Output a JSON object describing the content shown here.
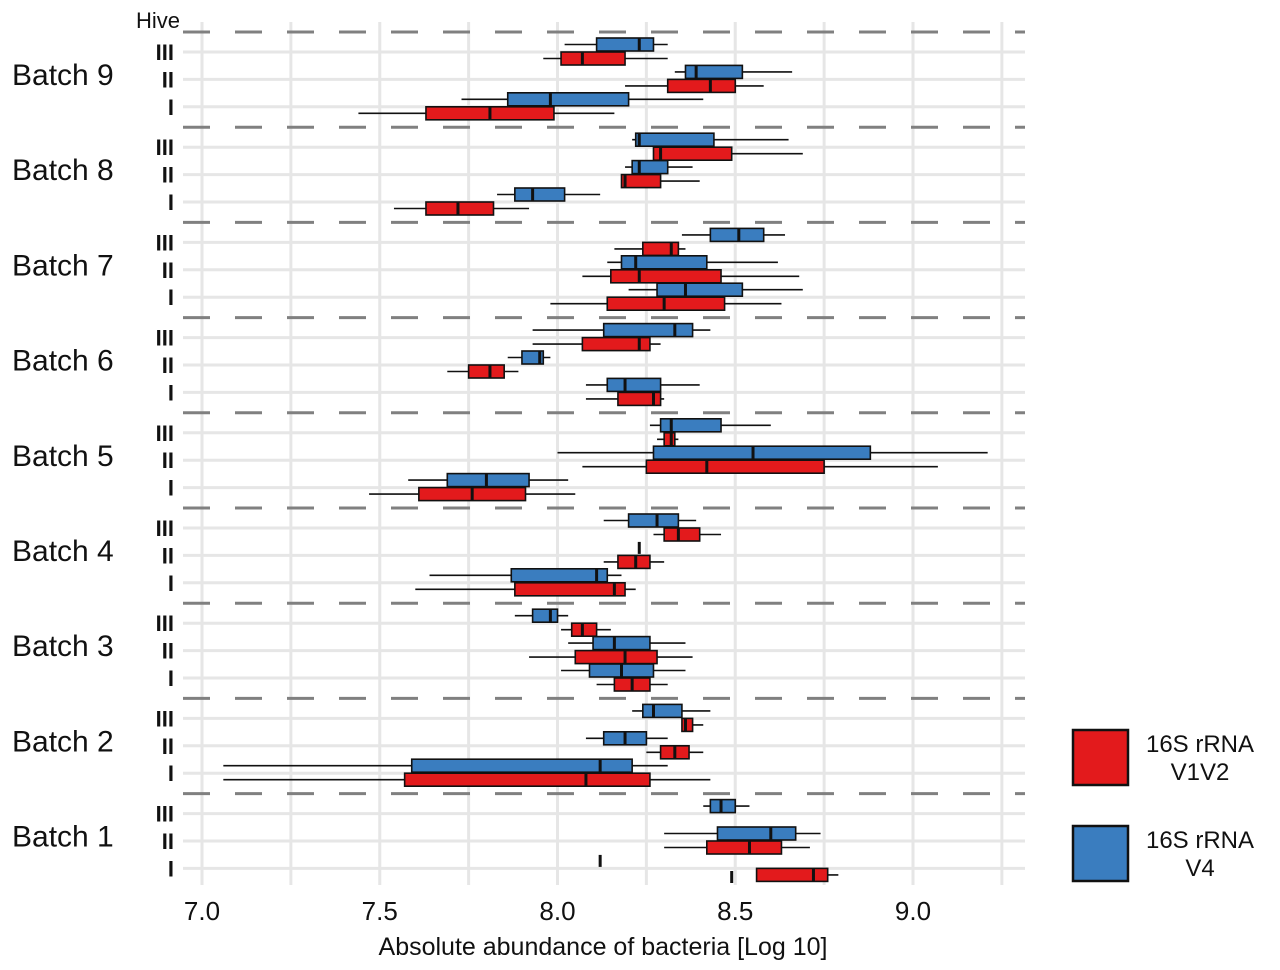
{
  "chart_data": {
    "type": "boxplot-horizontal",
    "title": "",
    "xlabel": "Absolute abundance of bacteria [Log 10]",
    "ylabel": "",
    "hive_axis_title": "Hive",
    "xlim": [
      6.95,
      9.3
    ],
    "x_ticks": [
      7.0,
      7.5,
      8.0,
      8.5,
      9.0
    ],
    "x_tick_labels": [
      "7.0",
      "7.5",
      "8.0",
      "8.5",
      "9.0"
    ],
    "x_minor_gridlines": [
      7.25,
      7.75,
      8.25,
      8.75,
      9.25
    ],
    "grid": true,
    "legend_position": "right",
    "series": [
      {
        "key": "v1v2",
        "name": "16S rRNA V1V2",
        "label_lines": [
          "16S rRNA",
          "V1V2"
        ],
        "color": "#e31a1c"
      },
      {
        "key": "v4",
        "name": "16S rRNA V4",
        "label_lines": [
          "16S rRNA",
          "V4"
        ],
        "color": "#3a7dbf"
      }
    ],
    "hives": [
      "III",
      "II",
      "I"
    ],
    "batches": [
      {
        "label": "Batch 9",
        "hives": {
          "III": {
            "v4": [
              8.02,
              8.11,
              8.23,
              8.27,
              8.31
            ],
            "v1v2": [
              7.96,
              8.01,
              8.07,
              8.19,
              8.31
            ]
          },
          "II": {
            "v4": [
              8.33,
              8.36,
              8.39,
              8.52,
              8.66
            ],
            "v1v2": [
              8.19,
              8.31,
              8.43,
              8.5,
              8.58
            ]
          },
          "I": {
            "v4": [
              7.73,
              7.86,
              7.98,
              8.2,
              8.41
            ],
            "v1v2": [
              7.44,
              7.63,
              7.81,
              7.99,
              8.16
            ]
          }
        }
      },
      {
        "label": "Batch 8",
        "hives": {
          "III": {
            "v4": [
              8.21,
              8.22,
              8.23,
              8.44,
              8.65
            ],
            "v1v2": [
              8.27,
              8.27,
              8.29,
              8.49,
              8.69
            ]
          },
          "II": {
            "v4": [
              8.19,
              8.21,
              8.23,
              8.31,
              8.38
            ],
            "v1v2": [
              8.18,
              8.18,
              8.19,
              8.29,
              8.4
            ]
          },
          "I": {
            "v4": [
              7.83,
              7.88,
              7.93,
              8.02,
              8.12
            ],
            "v1v2": [
              7.54,
              7.63,
              7.72,
              7.82,
              7.92
            ]
          }
        }
      },
      {
        "label": "Batch 7",
        "hives": {
          "III": {
            "v4": [
              8.35,
              8.43,
              8.51,
              8.58,
              8.64
            ],
            "v1v2": [
              8.16,
              8.24,
              8.32,
              8.34,
              8.36
            ]
          },
          "II": {
            "v4": [
              8.14,
              8.18,
              8.22,
              8.42,
              8.62
            ],
            "v1v2": [
              8.07,
              8.15,
              8.23,
              8.46,
              8.68
            ]
          },
          "I": {
            "v4": [
              8.2,
              8.28,
              8.36,
              8.52,
              8.69
            ],
            "v1v2": [
              7.98,
              8.14,
              8.3,
              8.47,
              8.63
            ]
          }
        }
      },
      {
        "label": "Batch 6",
        "hives": {
          "III": {
            "v4": [
              7.93,
              8.13,
              8.33,
              8.38,
              8.43
            ],
            "v1v2": [
              7.93,
              8.07,
              8.23,
              8.26,
              8.29
            ]
          },
          "II": {
            "v4": [
              7.86,
              7.9,
              7.95,
              7.96,
              7.98
            ],
            "v1v2": [
              7.69,
              7.75,
              7.81,
              7.85,
              7.89
            ]
          },
          "I": {
            "v4": [
              8.08,
              8.14,
              8.19,
              8.29,
              8.4
            ],
            "v1v2": [
              8.08,
              8.17,
              8.27,
              8.29,
              8.3
            ]
          }
        }
      },
      {
        "label": "Batch 5",
        "hives": {
          "III": {
            "v4": [
              8.26,
              8.29,
              8.32,
              8.46,
              8.6
            ],
            "v1v2": [
              8.28,
              8.3,
              8.32,
              8.33,
              8.34
            ]
          },
          "II": {
            "v4": [
              8.0,
              8.27,
              8.55,
              8.88,
              9.21
            ],
            "v1v2": [
              8.07,
              8.25,
              8.42,
              8.75,
              9.07
            ]
          },
          "I": {
            "v4": [
              7.58,
              7.69,
              7.8,
              7.92,
              8.03
            ],
            "v1v2": [
              7.47,
              7.61,
              7.76,
              7.91,
              8.05
            ]
          }
        }
      },
      {
        "label": "Batch 4",
        "hives": {
          "III": {
            "v4": [
              8.13,
              8.2,
              8.28,
              8.34,
              8.39
            ],
            "v1v2": [
              8.27,
              8.3,
              8.34,
              8.4,
              8.46
            ]
          },
          "II": {
            "v4": [
              8.23,
              8.23,
              8.23,
              8.23,
              8.23
            ],
            "v1v2": [
              8.13,
              8.17,
              8.22,
              8.26,
              8.3
            ]
          },
          "I": {
            "v4": [
              7.64,
              7.87,
              8.11,
              8.14,
              8.18
            ],
            "v1v2": [
              7.6,
              7.88,
              8.16,
              8.19,
              8.22
            ]
          }
        }
      },
      {
        "label": "Batch 3",
        "hives": {
          "III": {
            "v4": [
              7.88,
              7.93,
              7.98,
              8.0,
              8.03
            ],
            "v1v2": [
              8.01,
              8.04,
              8.07,
              8.11,
              8.15
            ]
          },
          "II": {
            "v4": [
              8.03,
              8.1,
              8.16,
              8.26,
              8.36
            ],
            "v1v2": [
              7.92,
              8.05,
              8.19,
              8.28,
              8.38
            ]
          },
          "I": {
            "v4": [
              8.01,
              8.09,
              8.18,
              8.27,
              8.36
            ],
            "v1v2": [
              8.11,
              8.16,
              8.21,
              8.26,
              8.31
            ]
          }
        }
      },
      {
        "label": "Batch 2",
        "hives": {
          "III": {
            "v4": [
              8.21,
              8.24,
              8.27,
              8.35,
              8.43
            ],
            "v1v2": [
              8.35,
              8.35,
              8.36,
              8.38,
              8.41
            ]
          },
          "II": {
            "v4": [
              8.08,
              8.13,
              8.19,
              8.25,
              8.31
            ],
            "v1v2": [
              8.25,
              8.29,
              8.33,
              8.37,
              8.41
            ]
          },
          "I": {
            "v4": [
              7.06,
              7.59,
              8.12,
              8.21,
              8.31
            ],
            "v1v2": [
              7.06,
              7.57,
              8.08,
              8.26,
              8.43
            ]
          }
        }
      },
      {
        "label": "Batch 1",
        "hives": {
          "III": {
            "v4": [
              8.41,
              8.43,
              8.46,
              8.5,
              8.54
            ],
            "v1v2": null
          },
          "II": {
            "v4": [
              8.3,
              8.45,
              8.6,
              8.67,
              8.74
            ],
            "v1v2": [
              8.3,
              8.42,
              8.54,
              8.63,
              8.71
            ]
          },
          "I": {
            "v4": [
              8.12,
              8.12,
              8.12,
              8.12,
              8.12
            ],
            "v1v2": [
              8.56,
              8.56,
              8.72,
              8.76,
              8.79
            ]
          }
        }
      }
    ],
    "box_value_order": [
      "min_whisker",
      "q1",
      "median",
      "q3",
      "max_whisker"
    ],
    "extra_marks": [
      {
        "description": "single value mark below Batch 1 Hive I",
        "x": 8.49
      }
    ]
  }
}
